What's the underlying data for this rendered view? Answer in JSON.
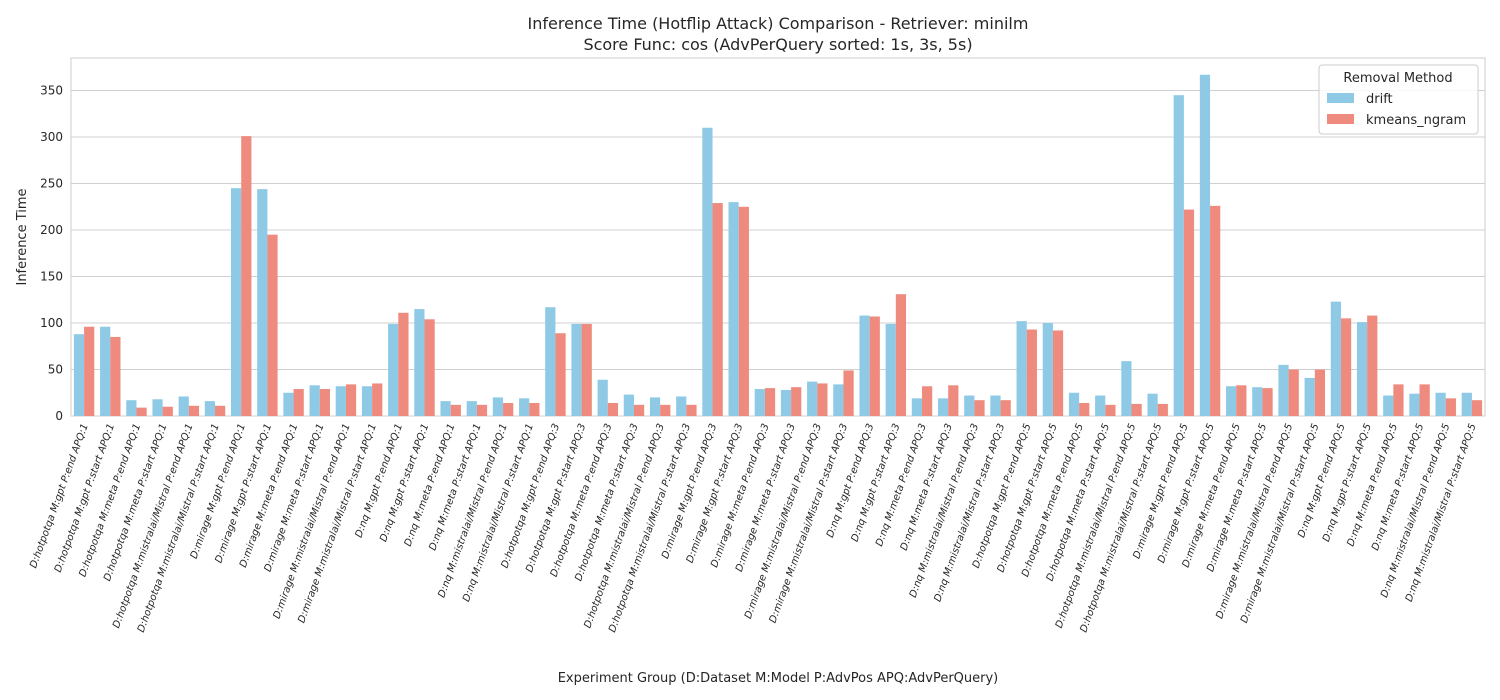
{
  "chart_data": {
    "type": "bar",
    "title": "Inference Time (Hotflip Attack) Comparison - Retriever: minilm",
    "subtitle": "Score Func: cos (AdvPerQuery sorted: 1s, 3s, 5s)",
    "xlabel": "Experiment Group (D:Dataset M:Model P:AdvPos APQ:AdvPerQuery)",
    "ylabel": "Inference Time",
    "ylim": [
      0,
      385
    ],
    "yticks": [
      0,
      50,
      100,
      150,
      200,
      250,
      300,
      350
    ],
    "grid": true,
    "legend": {
      "title": "Removal Method",
      "placement": "top-right"
    },
    "categories": [
      "D:hotpotqa M:gpt P:end APQ:1",
      "D:hotpotqa M:gpt P:start APQ:1",
      "D:hotpotqa M:meta P:end APQ:1",
      "D:hotpotqa M:meta P:start APQ:1",
      "D:hotpotqa M:mistralai/Mistral P:end APQ:1",
      "D:hotpotqa M:mistralai/Mistral P:start APQ:1",
      "D:mirage M:gpt P:end APQ:1",
      "D:mirage M:gpt P:start APQ:1",
      "D:mirage M:meta P:end APQ:1",
      "D:mirage M:meta P:start APQ:1",
      "D:mirage M:mistralai/Mistral P:end APQ:1",
      "D:mirage M:mistralai/Mistral P:start APQ:1",
      "D:nq M:gpt P:end APQ:1",
      "D:nq M:gpt P:start APQ:1",
      "D:nq M:meta P:end APQ:1",
      "D:nq M:meta P:start APQ:1",
      "D:nq M:mistralai/Mistral P:end APQ:1",
      "D:nq M:mistralai/Mistral P:start APQ:1",
      "D:hotpotqa M:gpt P:end APQ:3",
      "D:hotpotqa M:gpt P:start APQ:3",
      "D:hotpotqa M:meta P:end APQ:3",
      "D:hotpotqa M:meta P:start APQ:3",
      "D:hotpotqa M:mistralai/Mistral P:end APQ:3",
      "D:hotpotqa M:mistralai/Mistral P:start APQ:3",
      "D:mirage M:gpt P:end APQ:3",
      "D:mirage M:gpt P:start APQ:3",
      "D:mirage M:meta P:end APQ:3",
      "D:mirage M:meta P:start APQ:3",
      "D:mirage M:mistralai/Mistral P:end APQ:3",
      "D:mirage M:mistralai/Mistral P:start APQ:3",
      "D:nq M:gpt P:end APQ:3",
      "D:nq M:gpt P:start APQ:3",
      "D:nq M:meta P:end APQ:3",
      "D:nq M:meta P:start APQ:3",
      "D:nq M:mistralai/Mistral P:end APQ:3",
      "D:nq M:mistralai/Mistral P:start APQ:3",
      "D:hotpotqa M:gpt P:end APQ:5",
      "D:hotpotqa M:gpt P:start APQ:5",
      "D:hotpotqa M:meta P:end APQ:5",
      "D:hotpotqa M:meta P:start APQ:5",
      "D:hotpotqa M:mistralai/Mistral P:end APQ:5",
      "D:hotpotqa M:mistralai/Mistral P:start APQ:5",
      "D:mirage M:gpt P:end APQ:5",
      "D:mirage M:gpt P:start APQ:5",
      "D:mirage M:meta P:end APQ:5",
      "D:mirage M:meta P:start APQ:5",
      "D:mirage M:mistralai/Mistral P:end APQ:5",
      "D:mirage M:mistralai/Mistral P:start APQ:5",
      "D:nq M:gpt P:end APQ:5",
      "D:nq M:gpt P:start APQ:5",
      "D:nq M:meta P:end APQ:5",
      "D:nq M:meta P:start APQ:5",
      "D:nq M:mistralai/Mistral P:end APQ:5",
      "D:nq M:mistralai/Mistral P:start APQ:5"
    ],
    "series": [
      {
        "name": "drift",
        "color": "#8ecae6",
        "values": [
          88,
          96,
          17,
          18,
          21,
          16,
          245,
          244,
          25,
          33,
          32,
          32,
          99,
          115,
          16,
          16,
          20,
          19,
          117,
          99,
          39,
          23,
          20,
          21,
          310,
          230,
          29,
          28,
          37,
          34,
          108,
          99,
          19,
          19,
          22,
          22,
          102,
          100,
          25,
          22,
          59,
          24,
          345,
          367,
          32,
          31,
          55,
          41,
          123,
          101,
          22,
          24,
          25,
          25
        ]
      },
      {
        "name": "kmeans_ngram",
        "color": "#ee8a7e",
        "values": [
          96,
          85,
          9,
          10,
          11,
          11,
          301,
          195,
          29,
          29,
          34,
          35,
          111,
          104,
          12,
          12,
          14,
          14,
          89,
          99,
          14,
          12,
          12,
          12,
          229,
          225,
          30,
          31,
          35,
          49,
          107,
          131,
          32,
          33,
          17,
          17,
          93,
          92,
          14,
          12,
          13,
          13,
          222,
          226,
          33,
          30,
          50,
          50,
          105,
          108,
          34,
          34,
          19,
          17
        ]
      }
    ]
  }
}
